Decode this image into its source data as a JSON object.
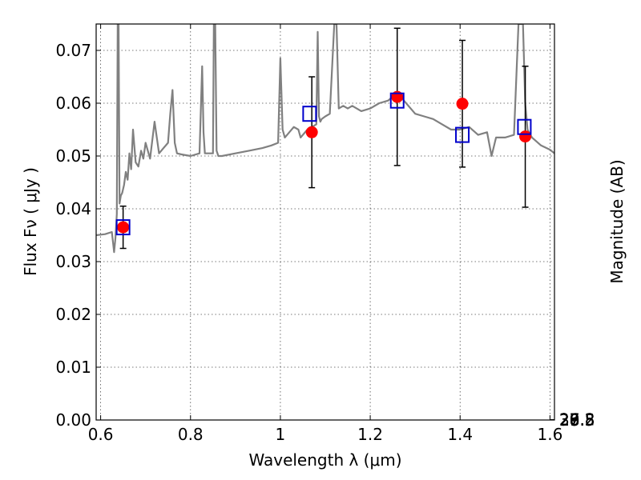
{
  "chart_data": {
    "type": "scatter",
    "xlabel": "Wavelength  λ (μm)",
    "ylabel": "Flux  Fν  ( μJy )",
    "y2label": "Magnitude (AB)",
    "xlim": [
      0.59,
      1.61
    ],
    "ylim": [
      0.0,
      0.075
    ],
    "grid": true,
    "x_ticks": [
      0.6,
      0.8,
      1.0,
      1.2,
      1.4,
      1.6
    ],
    "x_tick_labels": [
      "0.6",
      "0.8",
      "1",
      "1.2",
      "1.4",
      "1.6"
    ],
    "y_ticks": [
      0.0,
      0.01,
      0.02,
      0.03,
      0.04,
      0.05,
      0.06,
      0.07
    ],
    "y_tick_labels": [
      "0.00",
      "0.01",
      "0.02",
      "0.03",
      "0.04",
      "0.05",
      "0.06",
      "0.07"
    ],
    "y2_ticks": [
      26.8,
      27.0,
      27.2,
      27.5,
      28.0,
      28.5,
      29.0,
      30.0
    ],
    "y2_tick_labels": [
      "26.8",
      "27",
      "27.2",
      "27.5",
      "28",
      "28.5",
      "29",
      "30"
    ],
    "colors": {
      "model": "#808080",
      "observed": "#ff0000",
      "synthetic": "#0000cc",
      "errorbar": "#000000"
    },
    "series": [
      {
        "key": "model_spectrum",
        "style": "line",
        "x": [
          0.59,
          0.61,
          0.625,
          0.63,
          0.633,
          0.636,
          0.638,
          0.64,
          0.642,
          0.645,
          0.648,
          0.652,
          0.656,
          0.66,
          0.664,
          0.668,
          0.672,
          0.678,
          0.684,
          0.69,
          0.695,
          0.7,
          0.71,
          0.72,
          0.73,
          0.74,
          0.75,
          0.755,
          0.76,
          0.765,
          0.77,
          0.78,
          0.8,
          0.82,
          0.823,
          0.826,
          0.829,
          0.832,
          0.835,
          0.84,
          0.845,
          0.85,
          0.852,
          0.855,
          0.858,
          0.862,
          0.87,
          0.9,
          0.93,
          0.96,
          0.98,
          0.995,
          1.0,
          1.005,
          1.01,
          1.02,
          1.03,
          1.04,
          1.045,
          1.05,
          1.06,
          1.07,
          1.08,
          1.083,
          1.086,
          1.089,
          1.092,
          1.1,
          1.11,
          1.12,
          1.125,
          1.13,
          1.14,
          1.15,
          1.16,
          1.18,
          1.2,
          1.22,
          1.24,
          1.26,
          1.27,
          1.28,
          1.3,
          1.32,
          1.34,
          1.36,
          1.38,
          1.4,
          1.42,
          1.44,
          1.46,
          1.47,
          1.48,
          1.5,
          1.52,
          1.53,
          1.535,
          1.54,
          1.545,
          1.55,
          1.56,
          1.58,
          1.6,
          1.61
        ],
        "y": [
          0.035,
          0.0352,
          0.0356,
          0.0318,
          0.0345,
          0.039,
          0.075,
          0.075,
          0.041,
          0.0425,
          0.043,
          0.0445,
          0.047,
          0.0455,
          0.0505,
          0.0475,
          0.055,
          0.0488,
          0.048,
          0.051,
          0.0495,
          0.0525,
          0.0495,
          0.0565,
          0.0505,
          0.0515,
          0.0525,
          0.058,
          0.0625,
          0.0525,
          0.0505,
          0.0503,
          0.05,
          0.0505,
          0.059,
          0.067,
          0.0545,
          0.0505,
          0.0505,
          0.0505,
          0.0505,
          0.0505,
          0.075,
          0.075,
          0.051,
          0.05,
          0.05,
          0.0505,
          0.051,
          0.0515,
          0.052,
          0.0525,
          0.0685,
          0.055,
          0.0535,
          0.0545,
          0.0555,
          0.055,
          0.0535,
          0.054,
          0.055,
          0.0555,
          0.056,
          0.0735,
          0.0575,
          0.0565,
          0.057,
          0.0575,
          0.058,
          0.075,
          0.075,
          0.059,
          0.0595,
          0.059,
          0.0595,
          0.0585,
          0.059,
          0.06,
          0.0605,
          0.062,
          0.061,
          0.06,
          0.058,
          0.0575,
          0.057,
          0.056,
          0.055,
          0.055,
          0.0555,
          0.054,
          0.0545,
          0.05,
          0.0535,
          0.0535,
          0.054,
          0.075,
          0.075,
          0.075,
          0.06,
          0.055,
          0.0535,
          0.052,
          0.0512,
          0.0505
        ]
      },
      {
        "key": "synthetic_photometry",
        "style": "open-square",
        "x": [
          0.65,
          1.065,
          1.26,
          1.405,
          1.543
        ],
        "y": [
          0.0365,
          0.058,
          0.0605,
          0.054,
          0.0555
        ]
      },
      {
        "key": "observed_photometry",
        "style": "circle-errorbar",
        "x": [
          0.65,
          1.07,
          1.26,
          1.405,
          1.545
        ],
        "y": [
          0.0365,
          0.0545,
          0.0612,
          0.0599,
          0.0537
        ],
        "yerr_low": [
          0.0325,
          0.044,
          0.0482,
          0.0479,
          0.0403
        ],
        "yerr_high": [
          0.0405,
          0.065,
          0.0742,
          0.0719,
          0.067
        ]
      }
    ]
  }
}
